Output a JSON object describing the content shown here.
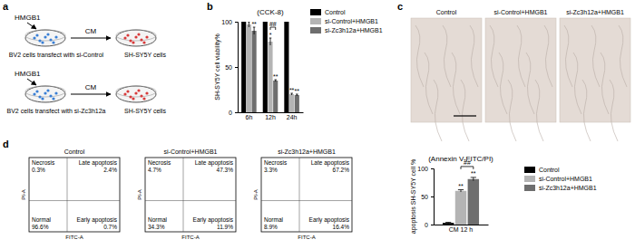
{
  "panel_labels": [
    "a",
    "b",
    "c",
    "d"
  ],
  "diagram": {
    "rows": [
      {
        "stimulus": "HMGB1",
        "source": "BV2 cells transfect with si-Control",
        "medium": "CM",
        "target": "SH-SY5Y cells"
      },
      {
        "stimulus": "HMGB1",
        "source": "BV2 cells transfect with si-Zc3h12a",
        "medium": "CM",
        "target": "SH-SY5Y cells"
      }
    ]
  },
  "images": {
    "labels": [
      "Control",
      "si-Control+HMGB1",
      "si-Zc3h12a+HMGB1"
    ]
  },
  "flow_cytometry": {
    "x_label": "FITC-A",
    "y_label": "PI-A",
    "plots": [
      {
        "title": "Control",
        "quadrants": [
          {
            "name": "Necrosis",
            "value": "0.3%"
          },
          {
            "name": "Late apoptosis",
            "value": "2.4%"
          },
          {
            "name": "Normal",
            "value": "96.6%"
          },
          {
            "name": "Early apoptosis",
            "value": "0.7%"
          }
        ]
      },
      {
        "title": "si-Control+HMGB1",
        "quadrants": [
          {
            "name": "Necrosis",
            "value": "4.7%"
          },
          {
            "name": "Late apoptosis",
            "value": "47.3%"
          },
          {
            "name": "Normal",
            "value": "34.3%"
          },
          {
            "name": "Early apoptosis",
            "value": "11.9%"
          }
        ]
      },
      {
        "title": "si-Zc3h12a+HMGB1",
        "quadrants": [
          {
            "name": "Necrosis",
            "value": "3.3%"
          },
          {
            "name": "Late apoptosis",
            "value": "67.2%"
          },
          {
            "name": "Normal",
            "value": "8.9%"
          },
          {
            "name": "Early apoptosis",
            "value": "16.4%"
          }
        ]
      }
    ]
  },
  "chart_data": [
    {
      "type": "bar",
      "title": "(CCK-8)",
      "y_label": "SH-SY5Y cell viability%",
      "categories": [
        "6h",
        "12h",
        "24h"
      ],
      "series": [
        {
          "name": "Control",
          "color": "#000000",
          "values": [
            100,
            100,
            100
          ],
          "errors": [
            2,
            0.5,
            0.5
          ]
        },
        {
          "name": "si-Control+HMGB1",
          "color": "#b4b4b4",
          "values": [
            97,
            78,
            20
          ],
          "errors": [
            3,
            4,
            1
          ]
        },
        {
          "name": "si-Zc3h12a+HMGB1",
          "color": "#6e6e6e",
          "values": [
            90,
            35,
            19
          ],
          "errors": [
            4,
            1,
            1
          ]
        }
      ],
      "ylim": [
        0,
        100
      ],
      "yticks": [
        0,
        50,
        100
      ],
      "legend": "right",
      "annotations": [
        {
          "text": "**",
          "category": "6h",
          "series": "si-Zc3h12a+HMGB1"
        },
        {
          "text": "*",
          "category": "12h",
          "series": "si-Control+HMGB1"
        },
        {
          "text": "**",
          "category": "12h",
          "series": "si-Zc3h12a+HMGB1"
        },
        {
          "text": "##",
          "category": "12h",
          "series": [
            "si-Control+HMGB1",
            "si-Zc3h12a+HMGB1"
          ]
        },
        {
          "text": "**",
          "category": "24h",
          "series": "si-Control+HMGB1"
        },
        {
          "text": "**",
          "category": "24h",
          "series": "si-Zc3h12a+HMGB1"
        }
      ]
    },
    {
      "type": "bar",
      "title": "(Annexin V-FITC/PI)",
      "y_label": "apoptosis SH-SY5Y cell %",
      "categories": [
        "CM 12 h"
      ],
      "series": [
        {
          "name": "Control",
          "color": "#000000",
          "values": [
            3
          ],
          "errors": [
            1
          ]
        },
        {
          "name": "si-Control+HMGB1",
          "color": "#b4b4b4",
          "values": [
            60
          ],
          "errors": [
            2
          ]
        },
        {
          "name": "si-Zc3h12a+HMGB1",
          "color": "#6e6e6e",
          "values": [
            81
          ],
          "errors": [
            3
          ]
        }
      ],
      "ylim": [
        0,
        100
      ],
      "yticks": [
        0,
        50,
        100
      ],
      "legend": "right",
      "annotations": [
        {
          "text": "**",
          "category": "CM 12 h",
          "series": "si-Control+HMGB1"
        },
        {
          "text": "**",
          "category": "CM 12 h",
          "series": "si-Zc3h12a+HMGB1"
        },
        {
          "text": "##",
          "category": "CM 12 h",
          "series": [
            "si-Control+HMGB1",
            "si-Zc3h12a+HMGB1"
          ]
        }
      ]
    }
  ]
}
